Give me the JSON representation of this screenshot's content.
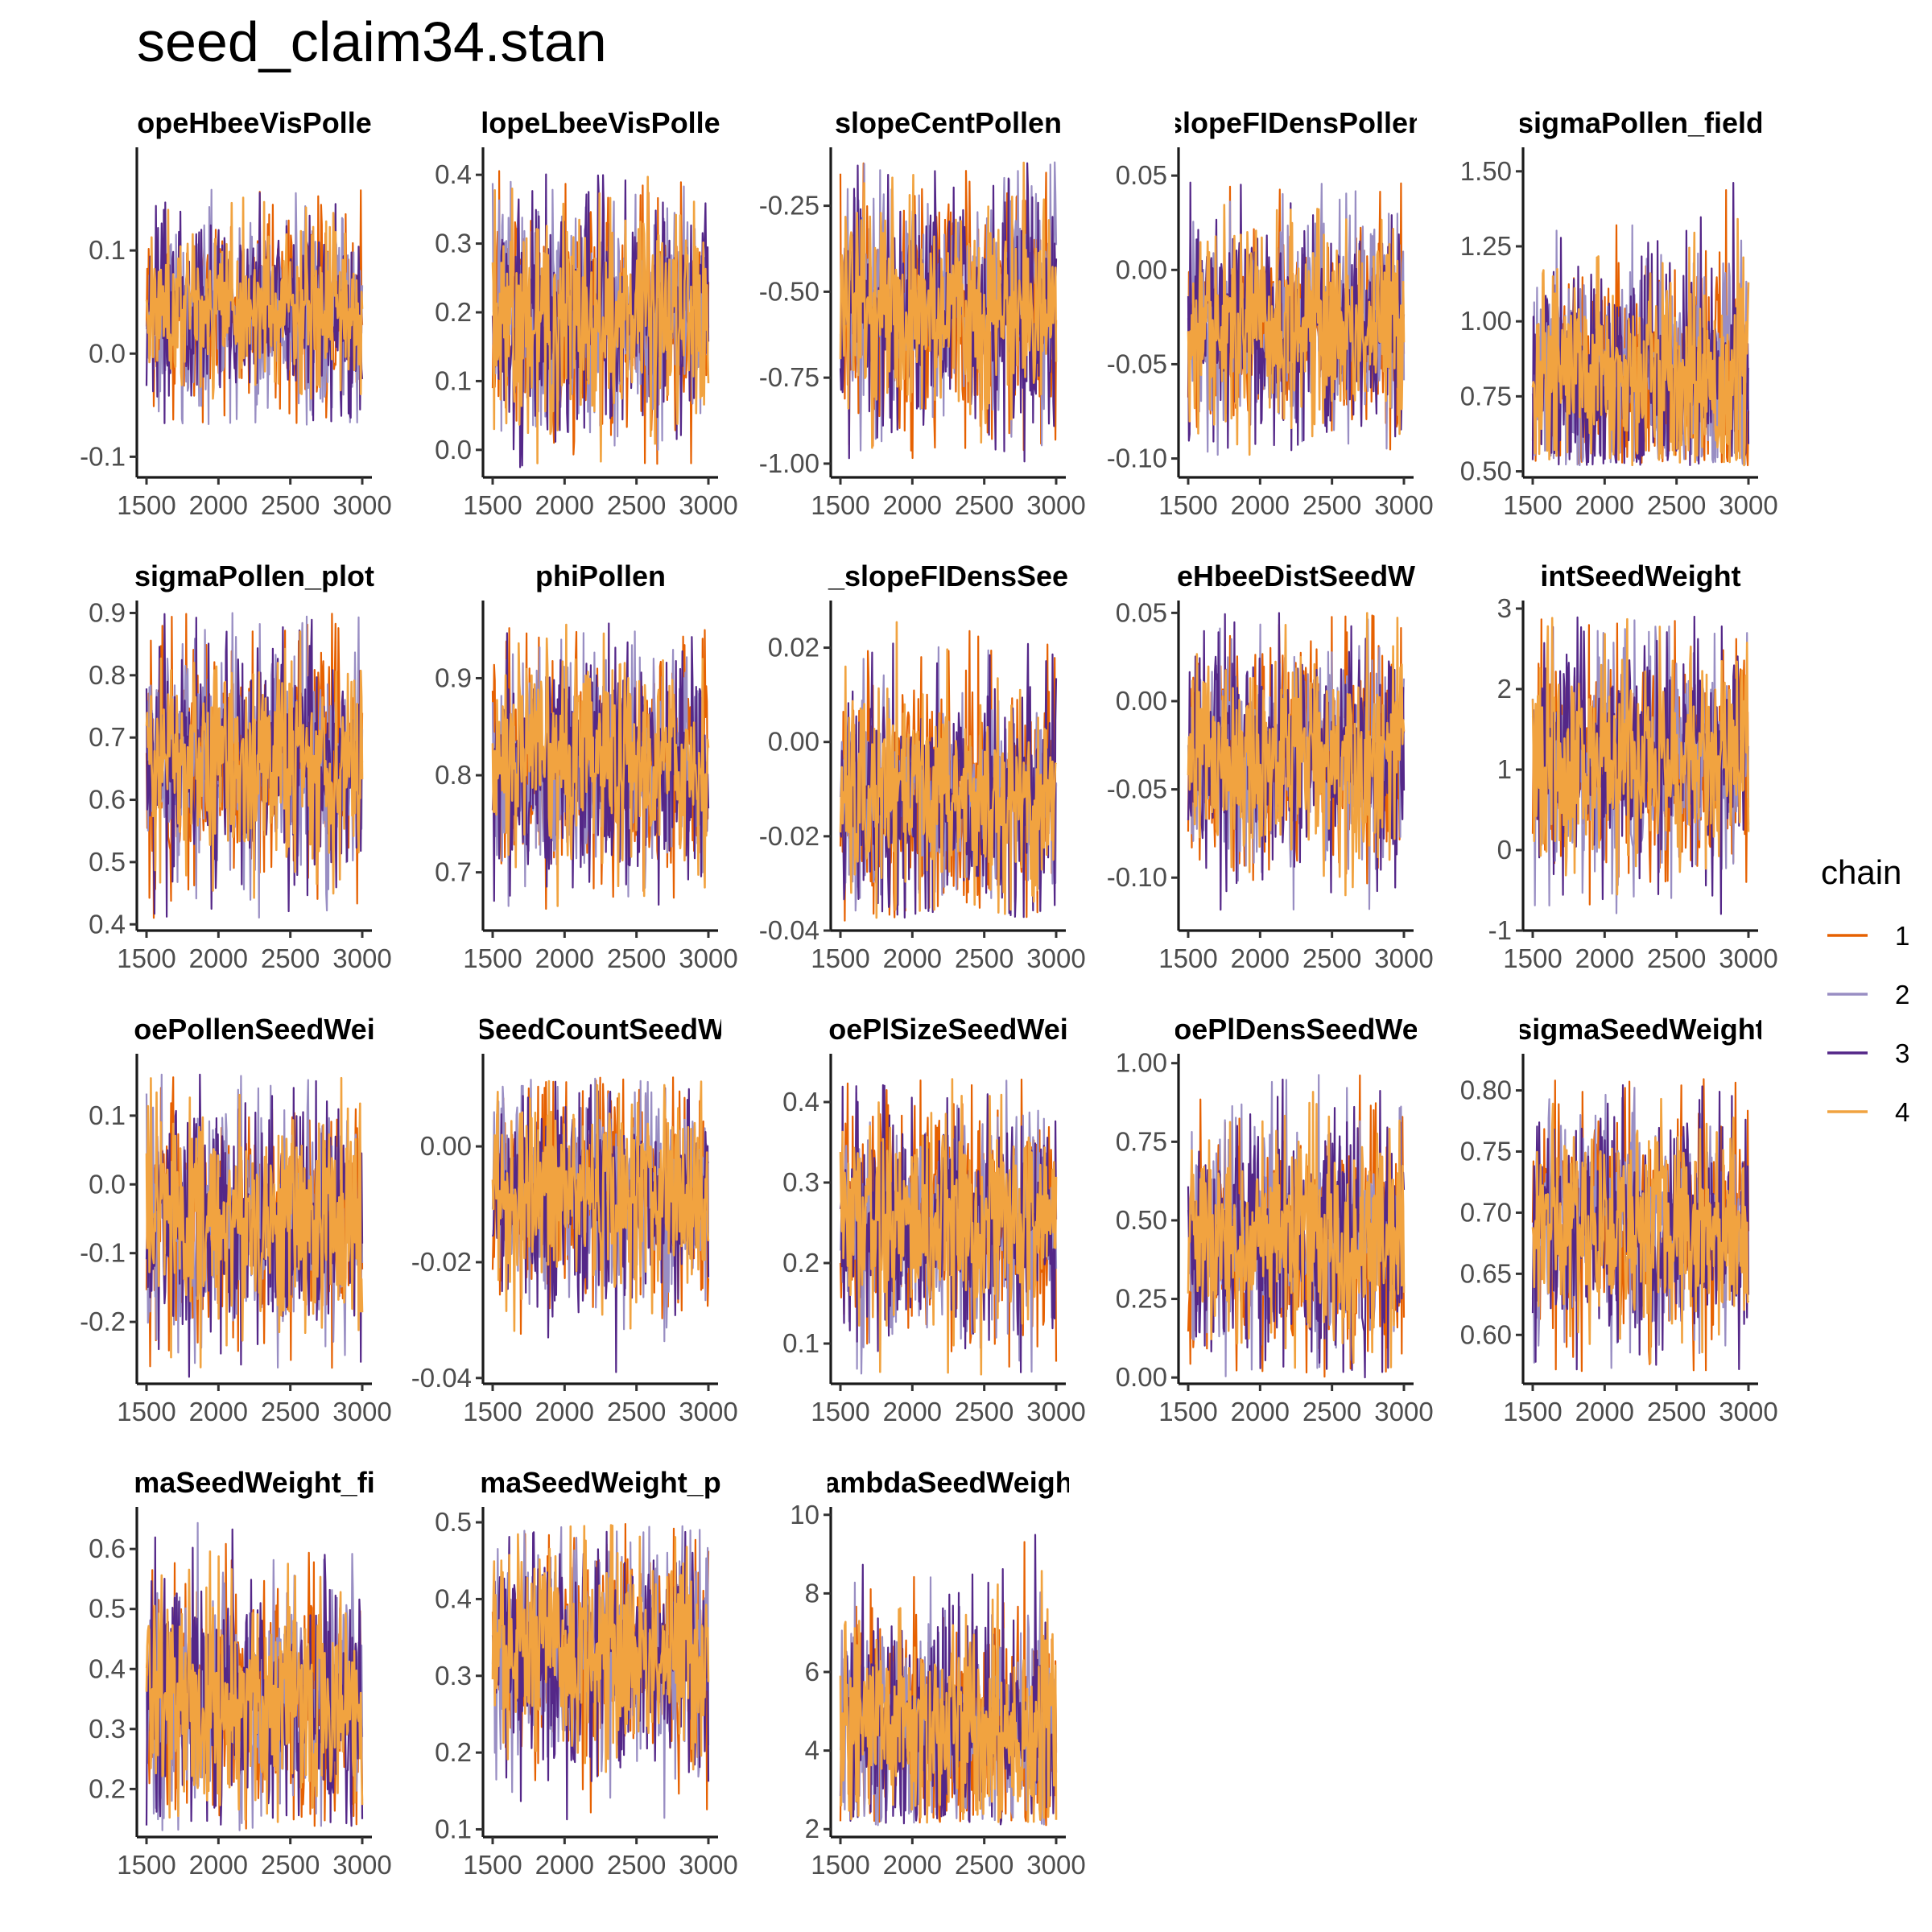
{
  "title": "seed_claim34.stan",
  "chart_data": {
    "type": "line",
    "description_free": true,
    "x_range": [
      1500,
      3000
    ],
    "x_ticks": [
      1500,
      2000,
      2500,
      3000
    ],
    "legend": {
      "title": "chain",
      "placement": "right",
      "entries": [
        {
          "label": "1",
          "color": "#E66101"
        },
        {
          "label": "2",
          "color": "#998EC3"
        },
        {
          "label": "3",
          "color": "#542788"
        },
        {
          "label": "4",
          "color": "#F1A340"
        }
      ]
    },
    "panels": [
      {
        "title": "opeHbeeVisPolle",
        "ylim": [
          -0.12,
          0.2
        ],
        "yticks": [
          -0.1,
          0.0,
          0.1
        ],
        "ytick_labels": [
          "-0.1",
          "0.0",
          "0.1"
        ],
        "center": 0.04,
        "lower": -0.07,
        "upper": 0.16
      },
      {
        "title": "lopeLbeeVisPolle",
        "ylim": [
          -0.04,
          0.44
        ],
        "yticks": [
          0.0,
          0.1,
          0.2,
          0.3,
          0.4
        ],
        "ytick_labels": [
          "0.0",
          "0.1",
          "0.2",
          "0.3",
          "0.4"
        ],
        "center": 0.19,
        "lower": -0.03,
        "upper": 0.41
      },
      {
        "title": "slopeCentPollen",
        "ylim": [
          -1.04,
          -0.08
        ],
        "yticks": [
          -1.0,
          -0.75,
          -0.5,
          -0.25
        ],
        "ytick_labels": [
          "-1.00",
          "-0.75",
          "-0.50",
          "-0.25"
        ],
        "center": -0.55,
        "lower": -1.0,
        "upper": -0.12
      },
      {
        "title": "slopeFIDensPollen",
        "ylim": [
          -0.11,
          0.065
        ],
        "yticks": [
          -0.1,
          -0.05,
          0.0,
          0.05
        ],
        "ytick_labels": [
          "-0.10",
          "-0.05",
          "0.00",
          "0.05"
        ],
        "center": -0.03,
        "lower": -0.1,
        "upper": 0.05
      },
      {
        "title": "sigmaPollen_field",
        "ylim": [
          0.48,
          1.58
        ],
        "yticks": [
          0.5,
          0.75,
          1.0,
          1.25,
          1.5
        ],
        "ytick_labels": [
          "0.50",
          "0.75",
          "1.00",
          "1.25",
          "1.50"
        ],
        "center": 0.82,
        "lower": 0.52,
        "upper": 1.53
      },
      {
        "title": "sigmaPollen_plot",
        "ylim": [
          0.39,
          0.92
        ],
        "yticks": [
          0.4,
          0.5,
          0.6,
          0.7,
          0.8,
          0.9
        ],
        "ytick_labels": [
          "0.4",
          "0.5",
          "0.6",
          "0.7",
          "0.8",
          "0.9"
        ],
        "center": 0.66,
        "lower": 0.41,
        "upper": 0.9
      },
      {
        "title": "phiPollen",
        "ylim": [
          0.64,
          0.98
        ],
        "yticks": [
          0.7,
          0.8,
          0.9
        ],
        "ytick_labels": [
          "0.7",
          "0.8",
          "0.9"
        ],
        "center": 0.81,
        "lower": 0.66,
        "upper": 0.96
      },
      {
        "title": "_slopeFIDensSee",
        "ylim": [
          -0.04,
          0.03
        ],
        "yticks": [
          -0.04,
          -0.02,
          0.0,
          0.02
        ],
        "ytick_labels": [
          "-0.04",
          "-0.02",
          "0.00",
          "0.02"
        ],
        "center": -0.012,
        "lower": -0.038,
        "upper": 0.027
      },
      {
        "title": "eHbeeDistSeedW",
        "ylim": [
          -0.13,
          0.057
        ],
        "yticks": [
          -0.1,
          -0.05,
          0.0,
          0.05
        ],
        "ytick_labels": [
          "-0.10",
          "-0.05",
          "0.00",
          "0.05"
        ],
        "center": -0.03,
        "lower": -0.12,
        "upper": 0.05
      },
      {
        "title": "intSeedWeight",
        "ylim": [
          -1.0,
          3.1
        ],
        "yticks": [
          -1,
          0,
          1,
          2,
          3
        ],
        "ytick_labels": [
          "-1",
          "0",
          "1",
          "2",
          "3"
        ],
        "center": 1.1,
        "lower": -0.8,
        "upper": 2.9
      },
      {
        "title": "oePollenSeedWei",
        "ylim": [
          -0.29,
          0.19
        ],
        "yticks": [
          -0.2,
          -0.1,
          0.0,
          0.1
        ],
        "ytick_labels": [
          "-0.2",
          "-0.1",
          "0.0",
          "0.1"
        ],
        "center": -0.05,
        "lower": -0.28,
        "upper": 0.16
      },
      {
        "title": "SeedCountSeedW",
        "ylim": [
          -0.041,
          0.016
        ],
        "yticks": [
          -0.04,
          -0.02,
          0.0
        ],
        "ytick_labels": [
          "-0.04",
          "-0.02",
          "0.00"
        ],
        "center": -0.008,
        "lower": -0.039,
        "upper": 0.012
      },
      {
        "title": "oePlSizeSeedWei",
        "ylim": [
          0.05,
          0.46
        ],
        "yticks": [
          0.1,
          0.2,
          0.3,
          0.4
        ],
        "ytick_labels": [
          "0.1",
          "0.2",
          "0.3",
          "0.4"
        ],
        "center": 0.25,
        "lower": 0.06,
        "upper": 0.43
      },
      {
        "title": "oePlDensSeedWe",
        "ylim": [
          -0.02,
          1.03
        ],
        "yticks": [
          0.0,
          0.25,
          0.5,
          0.75,
          1.0
        ],
        "ytick_labels": [
          "0.00",
          "0.25",
          "0.50",
          "0.75",
          "1.00"
        ],
        "center": 0.43,
        "lower": 0.0,
        "upper": 0.99
      },
      {
        "title": "sigmaSeedWeight",
        "ylim": [
          0.56,
          0.83
        ],
        "yticks": [
          0.6,
          0.65,
          0.7,
          0.75,
          0.8
        ],
        "ytick_labels": [
          "0.60",
          "0.65",
          "0.70",
          "0.75",
          "0.80"
        ],
        "center": 0.69,
        "lower": 0.57,
        "upper": 0.81
      },
      {
        "title": "maSeedWeight_fi",
        "ylim": [
          0.12,
          0.67
        ],
        "yticks": [
          0.2,
          0.3,
          0.4,
          0.5,
          0.6
        ],
        "ytick_labels": [
          "0.2",
          "0.3",
          "0.4",
          "0.5",
          "0.6"
        ],
        "center": 0.34,
        "lower": 0.13,
        "upper": 0.65
      },
      {
        "title": "maSeedWeight_p",
        "ylim": [
          0.09,
          0.52
        ],
        "yticks": [
          0.1,
          0.2,
          0.3,
          0.4,
          0.5
        ],
        "ytick_labels": [
          "0.1",
          "0.2",
          "0.3",
          "0.4",
          "0.5"
        ],
        "center": 0.33,
        "lower": 0.1,
        "upper": 0.5
      },
      {
        "title": "ambdaSeedWeigh",
        "ylim": [
          1.8,
          10.2
        ],
        "yticks": [
          2,
          4,
          6,
          8,
          10
        ],
        "ytick_labels": [
          "2",
          "4",
          "6",
          "8",
          "10"
        ],
        "center": 4.6,
        "lower": 2.1,
        "upper": 9.8
      }
    ]
  }
}
